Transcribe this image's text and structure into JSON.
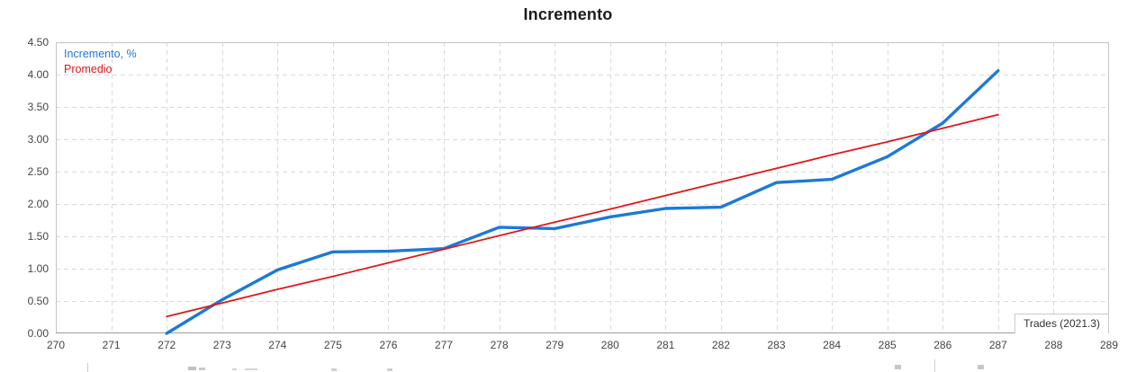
{
  "chart_data": {
    "type": "line",
    "title": "Incremento",
    "x": [
      272,
      273,
      274,
      275,
      276,
      277,
      278,
      279,
      280,
      281,
      282,
      283,
      284,
      285,
      286,
      287
    ],
    "series": [
      {
        "name": "Incremento, %",
        "color": "#1d79d6",
        "width": 3.4,
        "values": [
          0.0,
          0.52,
          0.98,
          1.26,
          1.27,
          1.31,
          1.64,
          1.62,
          1.8,
          1.93,
          1.95,
          2.33,
          2.38,
          2.73,
          3.25,
          4.06
        ]
      },
      {
        "name": "Promedio",
        "color": "#e21717",
        "width": 1.8,
        "values": [
          0.26,
          0.47,
          0.68,
          0.88,
          1.09,
          1.3,
          1.51,
          1.72,
          1.92,
          2.13,
          2.34,
          2.55,
          2.76,
          2.96,
          3.17,
          3.38
        ]
      }
    ],
    "xlim": [
      270,
      289
    ],
    "ylim": [
      0,
      4.5
    ],
    "x_tick_labels": [
      "270",
      "271",
      "272",
      "273",
      "274",
      "275",
      "276",
      "277",
      "278",
      "279",
      "280",
      "281",
      "282",
      "283",
      "284",
      "285",
      "286",
      "287",
      "288",
      "289"
    ],
    "y_tick_labels": [
      "4.50",
      "4.00",
      "3.50",
      "3.00",
      "2.50",
      "2.00",
      "1.50",
      "1.00",
      "0.50",
      "0.00"
    ],
    "y_tick_step": 0.5,
    "grid": "dashed",
    "legend_position": "top-left",
    "annotation": "Trades (2021.3)",
    "colors": {
      "grid": "#dadada",
      "plot_border": "#c4c4c4",
      "axis_line": "#9c9c9c",
      "axis_text": "#444444",
      "title_text": "#1c1c1c"
    }
  }
}
